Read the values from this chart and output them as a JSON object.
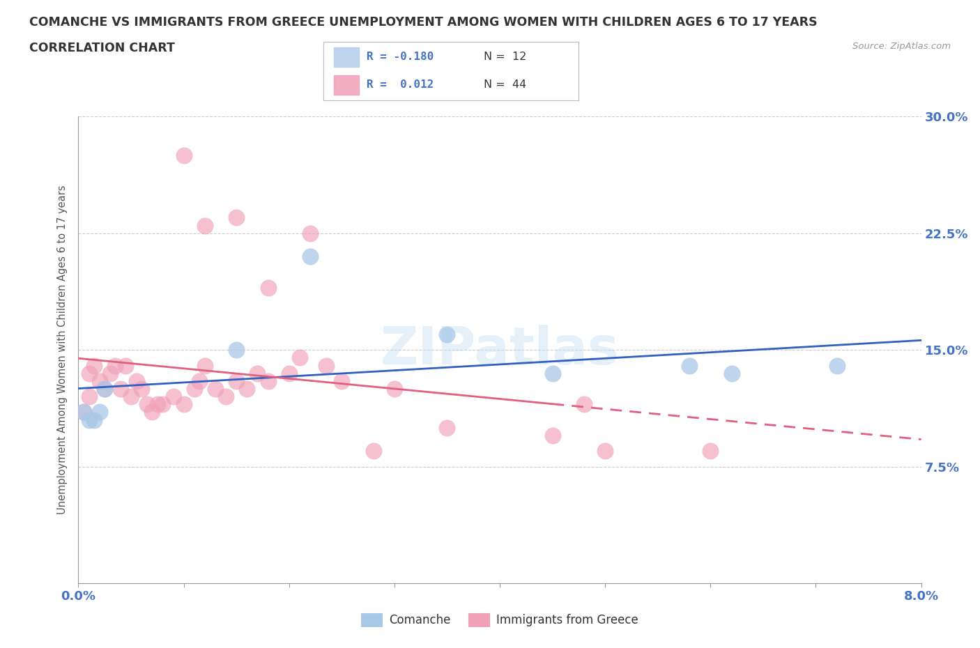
{
  "title_line1": "COMANCHE VS IMMIGRANTS FROM GREECE UNEMPLOYMENT AMONG WOMEN WITH CHILDREN AGES 6 TO 17 YEARS",
  "title_line2": "CORRELATION CHART",
  "source_text": "Source: ZipAtlas.com",
  "ylabel": "Unemployment Among Women with Children Ages 6 to 17 years",
  "xmin": 0.0,
  "xmax": 8.0,
  "ymin": 0.0,
  "ymax": 30.0,
  "blue_color": "#a8c8e8",
  "pink_color": "#f0a0b8",
  "blue_line_color": "#3060c0",
  "pink_line_color": "#e06080",
  "blue_scatter_x": [
    0.05,
    0.1,
    0.15,
    0.2,
    0.25,
    1.5,
    2.2,
    3.5,
    4.5,
    5.8,
    7.2,
    6.2
  ],
  "blue_scatter_y": [
    11.0,
    10.5,
    10.5,
    11.0,
    12.5,
    15.0,
    21.0,
    16.0,
    13.5,
    14.0,
    14.0,
    13.5
  ],
  "pink_scatter_x": [
    0.05,
    0.1,
    0.1,
    0.15,
    0.2,
    0.25,
    0.3,
    0.35,
    0.4,
    0.45,
    0.5,
    0.55,
    0.6,
    0.65,
    0.7,
    0.75,
    0.8,
    0.9,
    1.0,
    1.1,
    1.15,
    1.2,
    1.3,
    1.4,
    1.5,
    1.6,
    1.7,
    1.8,
    2.0,
    2.1,
    2.2,
    2.35,
    2.5,
    3.0,
    3.5,
    4.5,
    4.8,
    5.0,
    6.0,
    1.0,
    1.2,
    1.5,
    1.8,
    2.8
  ],
  "pink_scatter_y": [
    11.0,
    12.0,
    13.5,
    14.0,
    13.0,
    12.5,
    13.5,
    14.0,
    12.5,
    14.0,
    12.0,
    13.0,
    12.5,
    11.5,
    11.0,
    11.5,
    11.5,
    12.0,
    11.5,
    12.5,
    13.0,
    14.0,
    12.5,
    12.0,
    13.0,
    12.5,
    13.5,
    13.0,
    13.5,
    14.5,
    22.5,
    14.0,
    13.0,
    12.5,
    10.0,
    9.5,
    11.5,
    8.5,
    8.5,
    27.5,
    23.0,
    23.5,
    19.0,
    8.5
  ]
}
